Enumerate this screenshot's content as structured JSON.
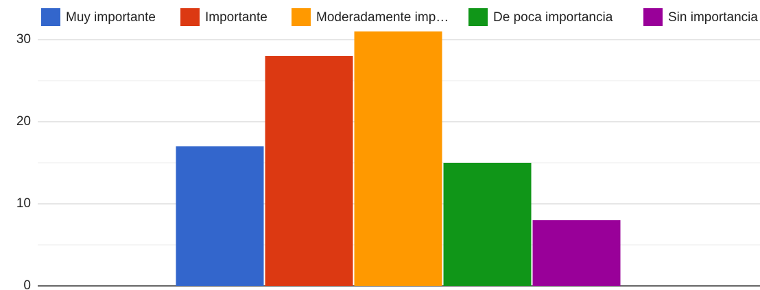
{
  "chart_data": {
    "type": "bar",
    "categories": [
      null
    ],
    "series": [
      {
        "name": "Muy importante",
        "color": "#3366cc",
        "values": [
          17
        ]
      },
      {
        "name": "Importante",
        "color": "#dc3912",
        "values": [
          28
        ]
      },
      {
        "name": "Moderadamente imp…",
        "color": "#ff9900",
        "values": [
          31
        ]
      },
      {
        "name": "De poca importancia",
        "color": "#109618",
        "values": [
          15
        ]
      },
      {
        "name": "Sin importancia",
        "color": "#990099",
        "values": [
          8
        ]
      }
    ],
    "ylim": [
      0,
      31
    ],
    "yticks": [
      0,
      10,
      20,
      30
    ],
    "minor_yticks": [
      5,
      15,
      25
    ],
    "grid": true,
    "legend": "top"
  }
}
